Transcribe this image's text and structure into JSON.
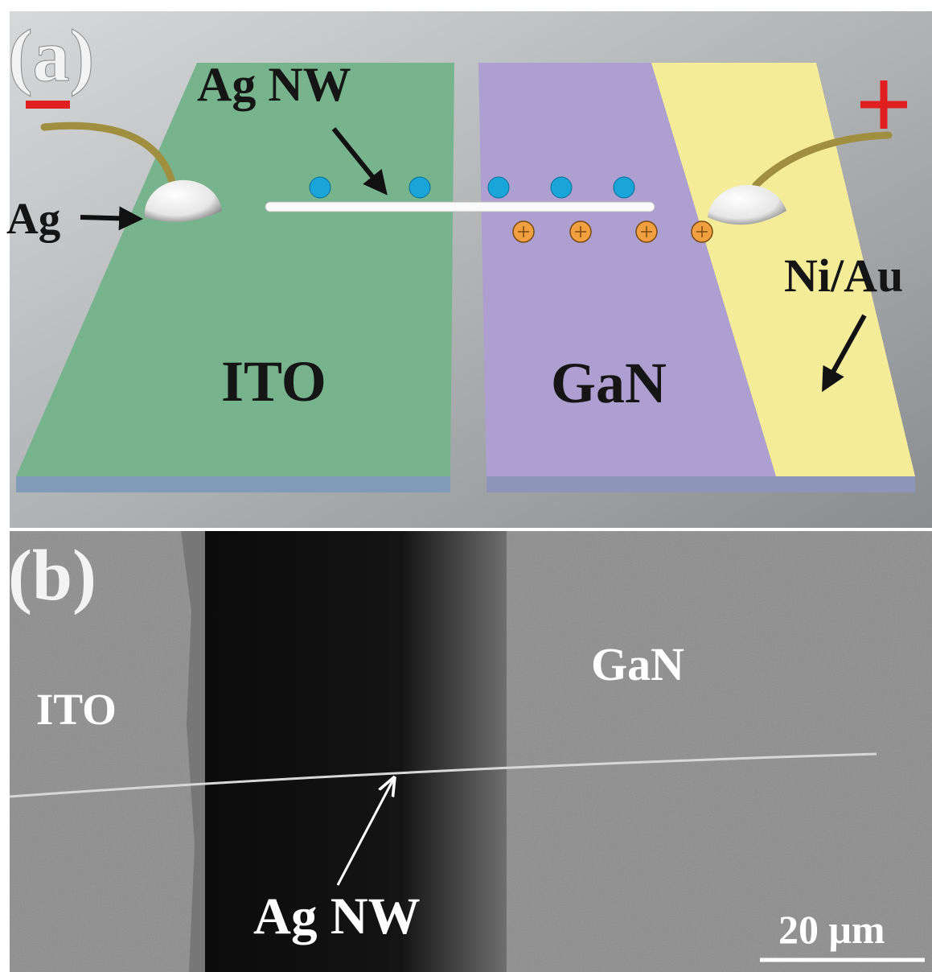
{
  "panel_a": {
    "label": "(a)",
    "nanowire": "Ag NW",
    "contact_left": "Ag",
    "contact_right": "Ni/Au",
    "left_layer": "ITO",
    "right_layer": "GaN"
  },
  "panel_b": {
    "label": "(b)",
    "left_region": "ITO",
    "right_region": "GaN",
    "nanowire": "Ag NW",
    "scale_bar": "20 μm"
  }
}
